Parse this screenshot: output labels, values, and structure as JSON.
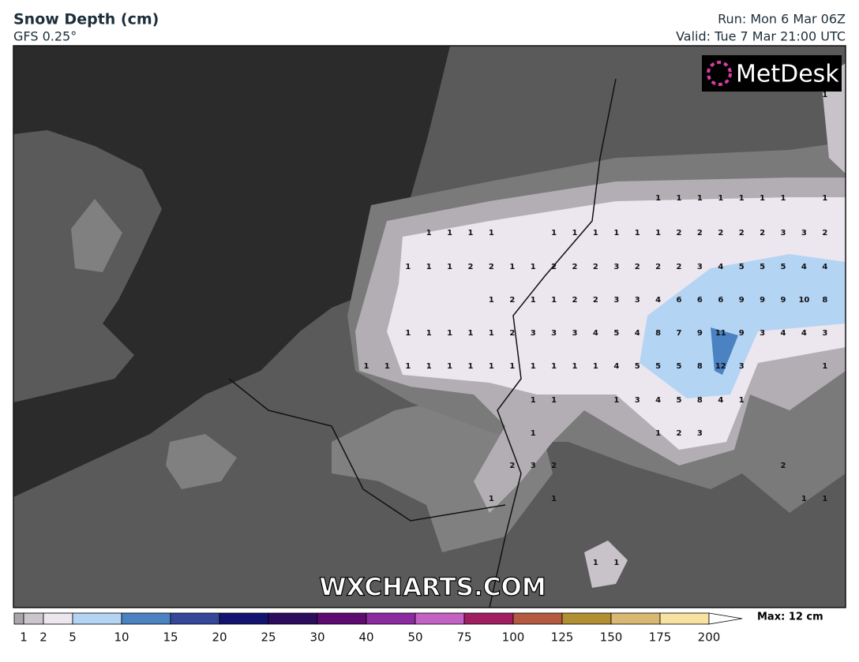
{
  "header": {
    "title": "Snow Depth (cm)",
    "subtitle": "GFS 0.25°",
    "run": "Run: Mon 6 Mar 06Z",
    "valid": "Valid: Tue 7 Mar 21:00 UTC"
  },
  "logo": "MetDesk",
  "watermark": "WXCHARTS.COM",
  "map_labels": [
    [
      null,
      null,
      null,
      null,
      null,
      null,
      null,
      null,
      null,
      null,
      null,
      null,
      null,
      null,
      null,
      null,
      null,
      null,
      null,
      null,
      null,
      null,
      1
    ],
    [
      null,
      null,
      null,
      null,
      null,
      null,
      null,
      null,
      null,
      null,
      null,
      null,
      null,
      null,
      1,
      1,
      1,
      1,
      1,
      1,
      1,
      null,
      1
    ],
    [
      null,
      null,
      null,
      1,
      1,
      1,
      1,
      null,
      null,
      1,
      1,
      1,
      1,
      1,
      1,
      2,
      2,
      2,
      2,
      2,
      3,
      3,
      2
    ],
    [
      null,
      null,
      1,
      1,
      1,
      2,
      2,
      1,
      1,
      2,
      2,
      2,
      3,
      2,
      2,
      2,
      3,
      4,
      5,
      5,
      5,
      4,
      4
    ],
    [
      null,
      null,
      null,
      null,
      null,
      null,
      1,
      2,
      1,
      1,
      2,
      2,
      3,
      3,
      4,
      6,
      6,
      6,
      9,
      9,
      9,
      10,
      8
    ],
    [
      null,
      null,
      1,
      1,
      1,
      1,
      1,
      2,
      3,
      3,
      3,
      4,
      5,
      4,
      8,
      7,
      9,
      11,
      9,
      3,
      4,
      4,
      3
    ],
    [
      1,
      1,
      1,
      1,
      1,
      1,
      1,
      1,
      1,
      1,
      1,
      1,
      4,
      5,
      5,
      5,
      8,
      12,
      3,
      null,
      null,
      null,
      1
    ],
    [
      null,
      null,
      null,
      null,
      null,
      null,
      null,
      null,
      1,
      1,
      null,
      null,
      1,
      3,
      4,
      5,
      8,
      4,
      1,
      null,
      null,
      null,
      null
    ],
    [
      null,
      null,
      null,
      null,
      null,
      null,
      null,
      null,
      1,
      null,
      null,
      null,
      null,
      null,
      1,
      2,
      3,
      null,
      null,
      null,
      null,
      null,
      null
    ],
    [
      null,
      null,
      null,
      null,
      null,
      null,
      null,
      2,
      3,
      2,
      null,
      null,
      null,
      null,
      null,
      null,
      null,
      null,
      null,
      null,
      2,
      null,
      null
    ],
    [
      null,
      null,
      null,
      null,
      null,
      null,
      1,
      null,
      null,
      1,
      null,
      null,
      null,
      null,
      null,
      null,
      null,
      null,
      null,
      null,
      null,
      1,
      1
    ],
    [
      null,
      null,
      null,
      null,
      null,
      null,
      null,
      null,
      null,
      null,
      null,
      1,
      1,
      null,
      null,
      null,
      null,
      null,
      null,
      null,
      null,
      null,
      null
    ]
  ],
  "legend": {
    "ticks": [
      1,
      2,
      5,
      10,
      15,
      20,
      25,
      30,
      40,
      50,
      75,
      100,
      125,
      150,
      175,
      200
    ],
    "colors": [
      "#a9a6aa",
      "#cbc5cc",
      "#ece6ef",
      "#b4d4f4",
      "#4a82c2",
      "#36479a",
      "#141470",
      "#2c0c5c",
      "#5e0a70",
      "#8c2aa0",
      "#c462c4",
      "#a01e62",
      "#b45a40",
      "#b09032",
      "#d8b872",
      "#f8e2a2"
    ],
    "max": "Max: 12 cm"
  }
}
